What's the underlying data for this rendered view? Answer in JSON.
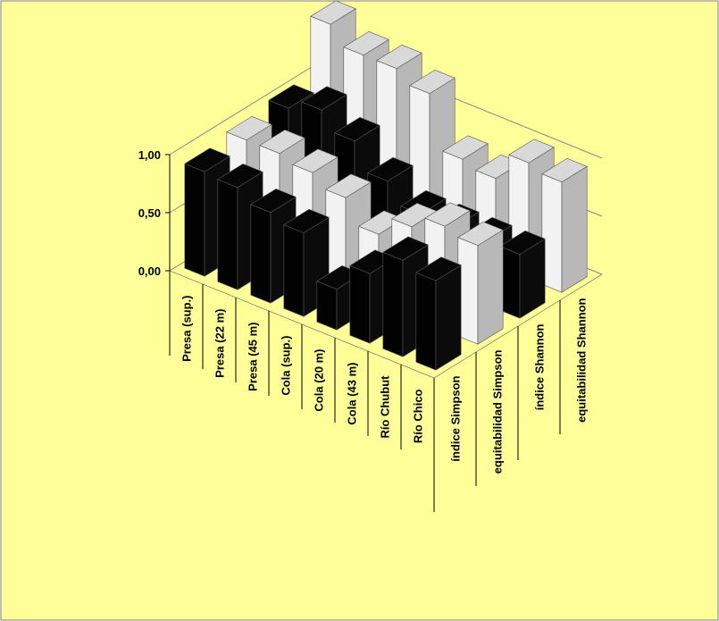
{
  "chart_data": {
    "type": "bar3d",
    "categories": [
      "Presa (sup.)",
      "Presa (22 m)",
      "Presa (45 m)",
      "Cola (sup.)",
      "Cola (20 m)",
      "Cola (43 m)",
      "Río Chubut",
      "Río Chico"
    ],
    "series": [
      {
        "name": "índice Simpson",
        "color": "#000000",
        "values": [
          0.9,
          0.88,
          0.78,
          0.72,
          0.35,
          0.6,
          0.83,
          0.77
        ]
      },
      {
        "name": "equitabilidad Simpson",
        "color": "#ffffff",
        "values": [
          0.95,
          0.95,
          0.9,
          0.8,
          0.6,
          0.78,
          0.9,
          0.85
        ]
      },
      {
        "name": "índice Shannon",
        "color": "#000000",
        "values": [
          1.0,
          1.1,
          0.95,
          0.72,
          0.55,
          0.55,
          0.55,
          0.55
        ]
      },
      {
        "name": "equitabilidad Shannon",
        "color": "#ffffff",
        "values": [
          1.5,
          1.35,
          1.35,
          1.25,
          0.8,
          0.75,
          1.0,
          0.95
        ]
      }
    ],
    "ylim": [
      0,
      1.5
    ],
    "yticks": [
      {
        "value": 0,
        "label": "0,00"
      },
      {
        "value": 0.5,
        "label": "0,50"
      },
      {
        "value": 1,
        "label": "1,00"
      }
    ],
    "grid": true
  }
}
